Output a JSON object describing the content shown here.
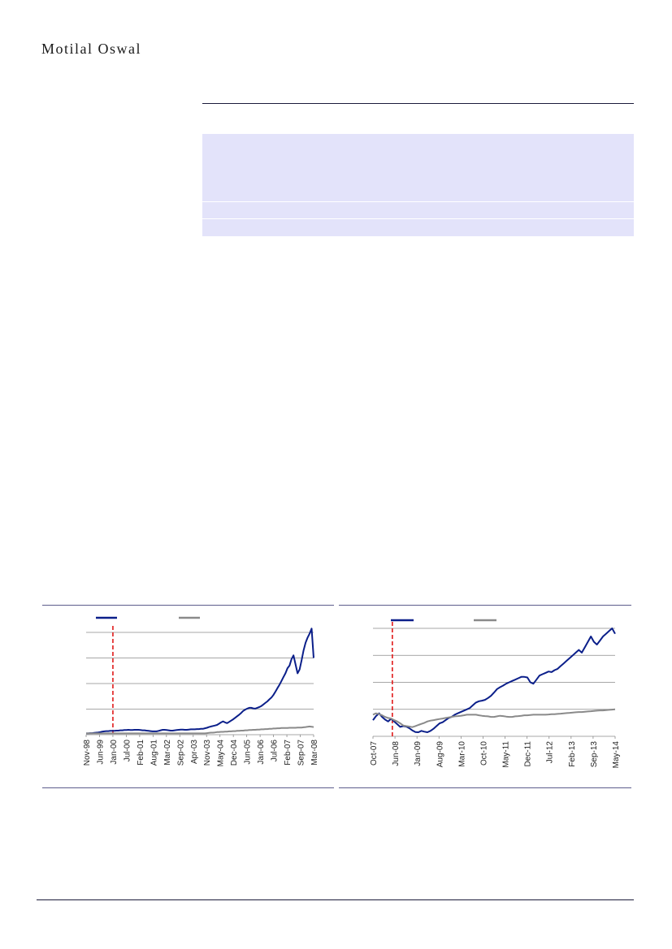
{
  "header": {
    "brand": "Motilal Oswal"
  },
  "colors": {
    "primary_series": "#0b1f8a",
    "secondary_series": "#8a8a8a",
    "event_marker": "#e01a1a",
    "gridline": "#8a8a8a",
    "shade": "#e3e3fa",
    "rule": "#1b1b3a"
  },
  "chart_data": [
    {
      "type": "line",
      "x_tick_labels": [
        "Nov-98",
        "Jun-99",
        "Jan-00",
        "Jul-00",
        "Feb-01",
        "Aug-01",
        "Mar-02",
        "Sep-02",
        "Apr-03",
        "Nov-03",
        "May-04",
        "Dec-04",
        "Jun-05",
        "Jan-06",
        "Jul-06",
        "Feb-07",
        "Sep-07",
        "Mar-08"
      ],
      "event_marker_at": "Jan-00",
      "ylim": [
        0,
        4
      ],
      "grid": true,
      "legend": "top",
      "series": [
        {
          "values": [
            0.05,
            0.05,
            0.06,
            0.06,
            0.07,
            0.08,
            0.09,
            0.1,
            0.12,
            0.13,
            0.14,
            0.14,
            0.15,
            0.15,
            0.15,
            0.16,
            0.16,
            0.17,
            0.17,
            0.18,
            0.18,
            0.19,
            0.18,
            0.18,
            0.19,
            0.19,
            0.19,
            0.18,
            0.17,
            0.17,
            0.16,
            0.15,
            0.14,
            0.13,
            0.13,
            0.13,
            0.15,
            0.17,
            0.19,
            0.19,
            0.18,
            0.17,
            0.16,
            0.16,
            0.17,
            0.18,
            0.19,
            0.2,
            0.2,
            0.19,
            0.19,
            0.2,
            0.21,
            0.21,
            0.21,
            0.22,
            0.22,
            0.23,
            0.23,
            0.25,
            0.27,
            0.3,
            0.32,
            0.34,
            0.36,
            0.38,
            0.43,
            0.48,
            0.52,
            0.48,
            0.45,
            0.5,
            0.55,
            0.6,
            0.66,
            0.72,
            0.78,
            0.85,
            0.93,
            0.98,
            1.02,
            1.05,
            1.05,
            1.03,
            1.02,
            1.05,
            1.08,
            1.12,
            1.18,
            1.24,
            1.3,
            1.38,
            1.45,
            1.55,
            1.68,
            1.82,
            1.95,
            2.1,
            2.25,
            2.4,
            2.6,
            2.7,
            2.95,
            3.1,
            2.75,
            2.4,
            2.55,
            2.9,
            3.3,
            3.6,
            3.8,
            3.95,
            4.15,
            3.0
          ]
        },
        {
          "values": [
            0.05,
            0.05,
            0.05,
            0.05,
            0.05,
            0.05,
            0.05,
            0.05,
            0.05,
            0.05,
            0.05,
            0.05,
            0.05,
            0.05,
            0.05,
            0.05,
            0.05,
            0.05,
            0.05,
            0.05,
            0.05,
            0.05,
            0.05,
            0.05,
            0.05,
            0.05,
            0.05,
            0.05,
            0.05,
            0.05,
            0.05,
            0.05,
            0.05,
            0.05,
            0.05,
            0.05,
            0.05,
            0.05,
            0.05,
            0.05,
            0.05,
            0.05,
            0.05,
            0.05,
            0.05,
            0.05,
            0.05,
            0.05,
            0.05,
            0.05,
            0.05,
            0.05,
            0.05,
            0.05,
            0.05,
            0.05,
            0.05,
            0.05,
            0.05,
            0.05,
            0.06,
            0.07,
            0.08,
            0.08,
            0.09,
            0.1,
            0.1,
            0.11,
            0.11,
            0.12,
            0.12,
            0.13,
            0.13,
            0.14,
            0.14,
            0.15,
            0.15,
            0.16,
            0.16,
            0.17,
            0.17,
            0.18,
            0.18,
            0.19,
            0.19,
            0.2,
            0.2,
            0.21,
            0.21,
            0.22,
            0.22,
            0.23,
            0.23,
            0.24,
            0.24,
            0.25,
            0.25,
            0.26,
            0.26,
            0.26,
            0.26,
            0.27,
            0.27,
            0.27,
            0.27,
            0.28,
            0.28,
            0.28,
            0.29,
            0.3,
            0.31,
            0.32,
            0.31,
            0.3
          ]
        }
      ]
    },
    {
      "type": "line",
      "x_tick_labels": [
        "Oct-07",
        "Jun-08",
        "Jan-09",
        "Aug-09",
        "Mar-10",
        "Oct-10",
        "May-11",
        "Dec-11",
        "Jul-12",
        "Feb-13",
        "Sep-13",
        "May-14"
      ],
      "event_marker_at": "Jan-08",
      "ylim": [
        0,
        4
      ],
      "grid": true,
      "legend": "top",
      "series": [
        {
          "values": [
            0.6,
            0.75,
            0.85,
            0.72,
            0.62,
            0.55,
            0.65,
            0.55,
            0.45,
            0.35,
            0.38,
            0.36,
            0.3,
            0.22,
            0.16,
            0.15,
            0.2,
            0.17,
            0.15,
            0.2,
            0.28,
            0.38,
            0.48,
            0.52,
            0.6,
            0.68,
            0.72,
            0.8,
            0.85,
            0.9,
            0.95,
            1.0,
            1.05,
            1.15,
            1.25,
            1.3,
            1.32,
            1.35,
            1.42,
            1.5,
            1.62,
            1.75,
            1.82,
            1.88,
            1.95,
            2.0,
            2.05,
            2.1,
            2.15,
            2.2,
            2.2,
            2.18,
            2.0,
            1.95,
            2.1,
            2.25,
            2.3,
            2.35,
            2.4,
            2.38,
            2.45,
            2.5,
            2.6,
            2.7,
            2.8,
            2.9,
            3.0,
            3.1,
            3.2,
            3.1,
            3.3,
            3.5,
            3.7,
            3.5,
            3.4,
            3.55,
            3.7,
            3.8,
            3.9,
            4.0,
            3.8
          ]
        },
        {
          "values": [
            0.8,
            0.85,
            0.82,
            0.78,
            0.72,
            0.68,
            0.66,
            0.6,
            0.55,
            0.48,
            0.4,
            0.38,
            0.36,
            0.34,
            0.38,
            0.42,
            0.46,
            0.5,
            0.55,
            0.58,
            0.6,
            0.62,
            0.64,
            0.66,
            0.68,
            0.7,
            0.72,
            0.74,
            0.75,
            0.76,
            0.78,
            0.8,
            0.8,
            0.8,
            0.8,
            0.78,
            0.76,
            0.75,
            0.74,
            0.72,
            0.72,
            0.74,
            0.76,
            0.75,
            0.73,
            0.72,
            0.72,
            0.74,
            0.75,
            0.76,
            0.78,
            0.78,
            0.79,
            0.8,
            0.8,
            0.8,
            0.8,
            0.8,
            0.81,
            0.82,
            0.82,
            0.83,
            0.84,
            0.85,
            0.86,
            0.87,
            0.88,
            0.89,
            0.9,
            0.9,
            0.91,
            0.92,
            0.93,
            0.94,
            0.95,
            0.96,
            0.96,
            0.97,
            0.98,
            0.99,
            1.0
          ]
        }
      ]
    }
  ]
}
